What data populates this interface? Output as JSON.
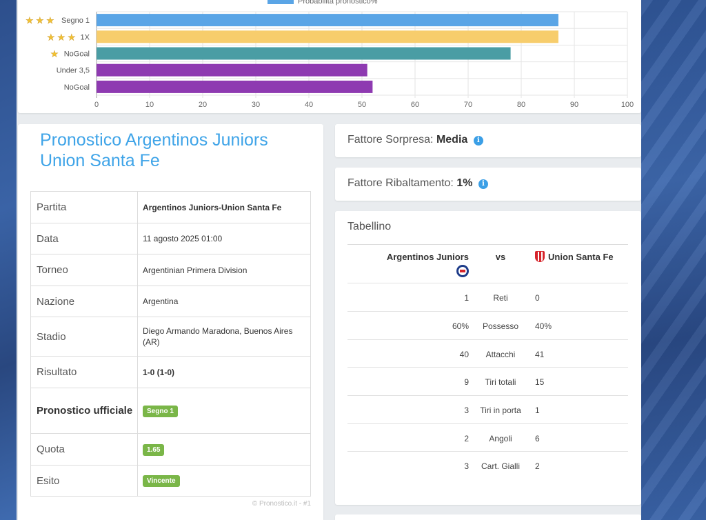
{
  "chart_data": {
    "type": "bar",
    "orientation": "horizontal",
    "legend": "Probabilità pronostico%",
    "legend_color": "#5aa5e6",
    "categories": [
      "Segno 1",
      "1X",
      "NoGoal",
      "Under 3,5",
      "NoGoal"
    ],
    "stars": [
      3,
      3,
      1,
      0,
      0
    ],
    "values": [
      87,
      87,
      78,
      51,
      52
    ],
    "colors": [
      "#5aa5e6",
      "#f7cd6c",
      "#4a9da4",
      "#8e3ab1",
      "#8e3ab1"
    ],
    "x_ticks": [
      "0",
      "10",
      "20",
      "30",
      "40",
      "50",
      "60",
      "70",
      "80",
      "90",
      "100"
    ],
    "xlim": [
      0,
      100
    ],
    "grid": true
  },
  "info": {
    "title": "Pronostico Argentinos Juniors Union Santa Fe",
    "rows": [
      {
        "label": "Partita",
        "value": "Argentinos Juniors-Union Santa Fe"
      },
      {
        "label": "Data",
        "value": "11 agosto 2025 01:00"
      },
      {
        "label": "Torneo",
        "value": "Argentinian Primera Division"
      },
      {
        "label": "Nazione",
        "value": "Argentina"
      },
      {
        "label": "Stadio",
        "value": "Diego Armando Maradona, Buenos Aires (AR)"
      },
      {
        "label": "Risultato",
        "value": "1-0 (1-0)"
      },
      {
        "label": "Pronostico ufficiale",
        "value": "Segno 1"
      },
      {
        "label": "Quota",
        "value": "1.65"
      },
      {
        "label": "Esito",
        "value": "Vincente"
      }
    ],
    "credit": "© Pronostico.it - #1",
    "badge_color": "#7ab648"
  },
  "sorpresa": {
    "label": "Fattore Sorpresa:",
    "value": "Media",
    "icon": "info-icon"
  },
  "ribaltamento": {
    "label": "Fattore Ribaltamento:",
    "value": "1%",
    "icon": "info-icon"
  },
  "tabellino": {
    "title": "Tabellino",
    "home": "Argentinos Juniors",
    "vs": "vs",
    "away": "Union Santa Fe",
    "stats": [
      {
        "home": "1",
        "name": "Reti",
        "away": "0"
      },
      {
        "home": "60%",
        "name": "Possesso",
        "away": "40%"
      },
      {
        "home": "40",
        "name": "Attacchi",
        "away": "41"
      },
      {
        "home": "9",
        "name": "Tiri totali",
        "away": "15"
      },
      {
        "home": "3",
        "name": "Tiri in porta",
        "away": "1"
      },
      {
        "home": "2",
        "name": "Angoli",
        "away": "6"
      },
      {
        "home": "3",
        "name": "Cart. Gialli",
        "away": "2"
      }
    ]
  }
}
